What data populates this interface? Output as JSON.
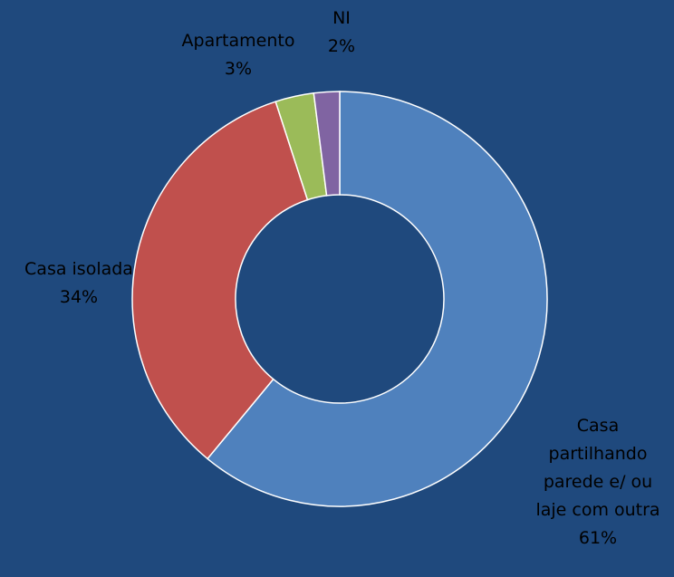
{
  "chart_data": {
    "type": "donut",
    "categories": [
      "Casa partilhando parede e/ ou laje com outra",
      "Casa isolada",
      "Apartamento",
      "NI"
    ],
    "values": [
      61,
      34,
      3,
      2
    ],
    "value_labels": [
      "61%",
      "34%",
      "3%",
      "2%"
    ],
    "colors": [
      "#4f81bd",
      "#c0504d",
      "#9bbb59",
      "#8064a2"
    ],
    "background": "#1f497d"
  }
}
